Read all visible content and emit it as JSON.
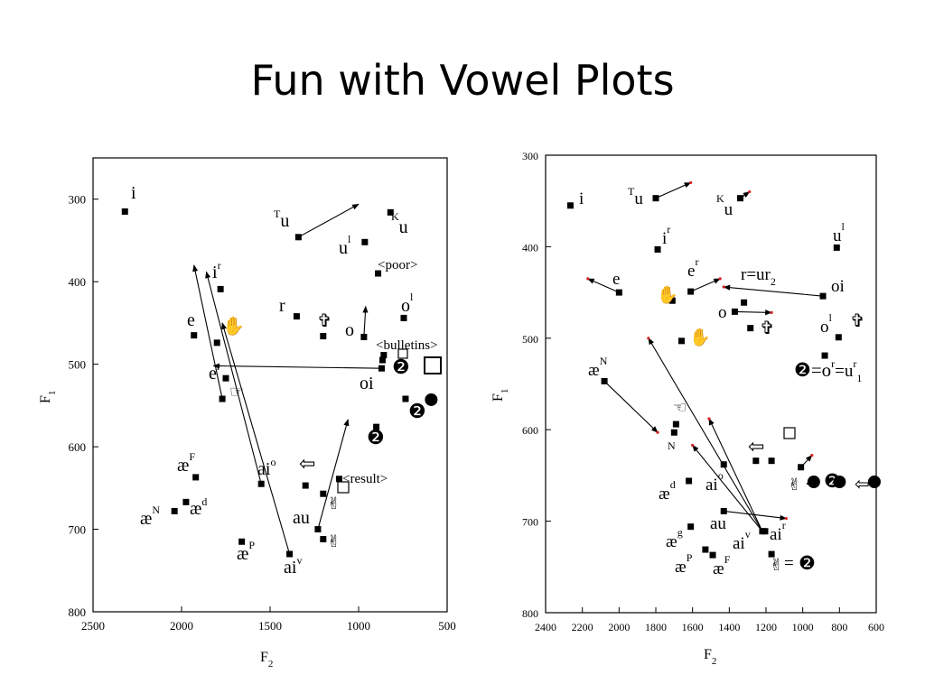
{
  "slide": {
    "title": "Fun with Vowel Plots"
  },
  "chart_data": [
    {
      "type": "scatter",
      "xlabel": "F",
      "xlabel_sub": "2",
      "ylabel": "F",
      "ylabel_sub": "1",
      "xlim": [
        2500,
        500
      ],
      "ylim": [
        800,
        250
      ],
      "x_ticks": [
        2500,
        2000,
        1500,
        1000,
        500
      ],
      "y_ticks": [
        300,
        400,
        500,
        600,
        700,
        800
      ],
      "points": [
        {
          "x": 2320,
          "y": 315
        },
        {
          "x": 1780,
          "y": 409
        },
        {
          "x": 1930,
          "y": 465
        },
        {
          "x": 1800,
          "y": 474
        },
        {
          "x": 1750,
          "y": 517
        },
        {
          "x": 1770,
          "y": 542
        },
        {
          "x": 1340,
          "y": 346
        },
        {
          "x": 820,
          "y": 316
        },
        {
          "x": 965,
          "y": 352
        },
        {
          "x": 890,
          "y": 390
        },
        {
          "x": 1350,
          "y": 442
        },
        {
          "x": 1200,
          "y": 466
        },
        {
          "x": 970,
          "y": 467
        },
        {
          "x": 745,
          "y": 444
        },
        {
          "x": 858,
          "y": 489
        },
        {
          "x": 865,
          "y": 495
        },
        {
          "x": 870,
          "y": 505
        },
        {
          "x": 735,
          "y": 542
        },
        {
          "x": 900,
          "y": 576
        },
        {
          "x": 1920,
          "y": 637
        },
        {
          "x": 1975,
          "y": 667
        },
        {
          "x": 2040,
          "y": 678
        },
        {
          "x": 1550,
          "y": 645
        },
        {
          "x": 1300,
          "y": 647
        },
        {
          "x": 1200,
          "y": 657
        },
        {
          "x": 1110,
          "y": 639
        },
        {
          "x": 1230,
          "y": 700
        },
        {
          "x": 1200,
          "y": 712
        },
        {
          "x": 1390,
          "y": 730
        },
        {
          "x": 1660,
          "y": 715
        }
      ],
      "filled_circles": [
        {
          "x": 590,
          "y": 543
        }
      ],
      "arrows": [
        {
          "from": [
            1340,
            346
          ],
          "to": [
            1000,
            306
          ]
        },
        {
          "from": [
            1770,
            542
          ],
          "to": [
            1930,
            380
          ]
        },
        {
          "from": [
            1550,
            645
          ],
          "to": [
            1860,
            388
          ]
        },
        {
          "from": [
            1390,
            730
          ],
          "to": [
            1770,
            450
          ]
        },
        {
          "from": [
            870,
            505
          ],
          "to": [
            1820,
            502
          ]
        },
        {
          "from": [
            970,
            467
          ],
          "to": [
            960,
            430
          ]
        },
        {
          "from": [
            1230,
            700
          ],
          "to": [
            1060,
            567
          ]
        }
      ],
      "annotations": {
        "i": "i",
        "ir_base": "i",
        "ir_sup": "r",
        "e": "e",
        "er_base": "e",
        "er_sup": "r",
        "tu_pre": "T",
        "tu_base": "u",
        "ku_pre": "K",
        "ku_base": "u",
        "ul_base": "u",
        "ul_sup": "l",
        "poor": "<poor>",
        "r": "r",
        "o": "o",
        "ol_base": "o",
        "ol_sup": "l",
        "bulletins": "<bulletins>",
        "oi": "oi",
        "two_a": "❷",
        "two_b": "❷",
        "two_c": "❷",
        "af_base": "æ",
        "af_sup": "F",
        "an_base": "æ",
        "an_sup": "N",
        "ad_base": "æ",
        "ad_sup": "d",
        "aio_base": "ai",
        "aio_sup": "o",
        "result": "<result>",
        "au": "au",
        "ap_base": "æ",
        "ap_sup": "P",
        "aiv_base": "ai",
        "aiv_sup": "v",
        "hand": "☞",
        "wave": "✋",
        "peace": "✌",
        "cross": "✞",
        "left": "⇦"
      }
    },
    {
      "type": "scatter",
      "xlabel": "F",
      "xlabel_sub": "2",
      "ylabel": "F",
      "ylabel_sub": "1",
      "xlim": [
        2400,
        600
      ],
      "ylim": [
        800,
        300
      ],
      "x_ticks": [
        2400,
        2200,
        2000,
        1800,
        1600,
        1400,
        1200,
        1000,
        800,
        600
      ],
      "y_ticks": [
        300,
        400,
        500,
        600,
        700,
        800
      ],
      "points": [
        {
          "x": 2265,
          "y": 355
        },
        {
          "x": 1800,
          "y": 347
        },
        {
          "x": 1340,
          "y": 347
        },
        {
          "x": 1790,
          "y": 403
        },
        {
          "x": 815,
          "y": 401
        },
        {
          "x": 2000,
          "y": 450
        },
        {
          "x": 1610,
          "y": 449
        },
        {
          "x": 1710,
          "y": 459
        },
        {
          "x": 1320,
          "y": 461
        },
        {
          "x": 1370,
          "y": 471
        },
        {
          "x": 1285,
          "y": 489
        },
        {
          "x": 1660,
          "y": 503
        },
        {
          "x": 890,
          "y": 454
        },
        {
          "x": 805,
          "y": 499
        },
        {
          "x": 880,
          "y": 519
        },
        {
          "x": 2080,
          "y": 547
        },
        {
          "x": 1690,
          "y": 594
        },
        {
          "x": 1700,
          "y": 603
        },
        {
          "x": 1430,
          "y": 638
        },
        {
          "x": 1255,
          "y": 634
        },
        {
          "x": 1170,
          "y": 634
        },
        {
          "x": 1010,
          "y": 641
        },
        {
          "x": 1620,
          "y": 656
        },
        {
          "x": 1430,
          "y": 689
        },
        {
          "x": 1610,
          "y": 706
        },
        {
          "x": 1530,
          "y": 731
        },
        {
          "x": 1490,
          "y": 737
        },
        {
          "x": 1170,
          "y": 736
        },
        {
          "x": 1220,
          "y": 711
        },
        {
          "x": 1205,
          "y": 711
        }
      ],
      "filled_circles": [
        {
          "x": 940,
          "y": 657
        },
        {
          "x": 800,
          "y": 657
        },
        {
          "x": 610,
          "y": 657
        }
      ],
      "arrows": [
        {
          "from": [
            1800,
            347
          ],
          "to": [
            1610,
            330
          ]
        },
        {
          "from": [
            1340,
            347
          ],
          "to": [
            1290,
            340
          ]
        },
        {
          "from": [
            2000,
            450
          ],
          "to": [
            2170,
            435
          ]
        },
        {
          "from": [
            1610,
            449
          ],
          "to": [
            1450,
            435
          ]
        },
        {
          "from": [
            890,
            454
          ],
          "to": [
            1430,
            444
          ]
        },
        {
          "from": [
            1370,
            471
          ],
          "to": [
            1170,
            472
          ]
        },
        {
          "from": [
            2080,
            547
          ],
          "to": [
            1790,
            603
          ]
        },
        {
          "from": [
            1220,
            711
          ],
          "to": [
            1840,
            500
          ]
        },
        {
          "from": [
            1220,
            711
          ],
          "to": [
            1600,
            617
          ]
        },
        {
          "from": [
            1220,
            711
          ],
          "to": [
            1510,
            588
          ]
        },
        {
          "from": [
            1430,
            689
          ],
          "to": [
            1090,
            697
          ]
        },
        {
          "from": [
            1010,
            641
          ],
          "to": [
            950,
            628
          ]
        }
      ],
      "annotations": {
        "i": "i",
        "tu_pre": "T",
        "tu_base": "u",
        "ku_pre": "K",
        "ku_base": "u",
        "ir_base": "i",
        "ir_sup": "r",
        "ul_base": "u",
        "ul_sup": "l",
        "e": "e",
        "er_base": "e",
        "er_sup": "r",
        "r_eq": "r=ur",
        "r_eq_sub": "2",
        "oi": "oi",
        "o": "o",
        "ol_base": "o",
        "ol_sup": "l",
        "aen_base": "æ",
        "aen_sup": "N",
        "two_eq": "❷=o",
        "two_eq_sup": "r",
        "two_eq2": "=u",
        "two_eq2_sup": "r",
        "two_eq2_sub": "1",
        "n_sup": "N",
        "aio_base": "ai",
        "aio_sup": "o",
        "ad_base": "æ",
        "ad_sup": "d",
        "au": "au",
        "air_base": "ai",
        "air_sup": "r",
        "ag_base": "æ",
        "ag_sup": "g",
        "aiv_base": "ai",
        "aiv_sup": "v",
        "ap_base": "æ",
        "ap_sup": "P",
        "af_base": "æ",
        "af_sup": "F",
        "two_bottom": "❷",
        "two_right": "❷",
        "hand": "☜",
        "wave": "✋",
        "peace": "✌",
        "cross": "✞",
        "left": "⇦"
      }
    }
  ]
}
